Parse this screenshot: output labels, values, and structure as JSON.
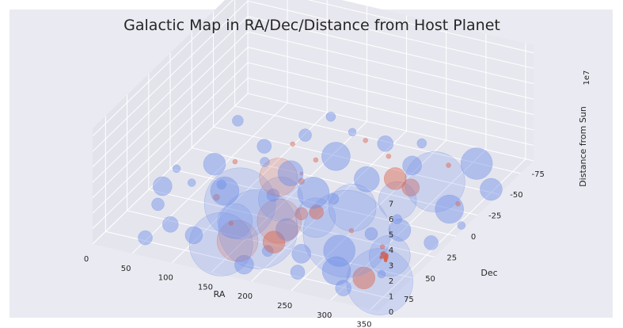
{
  "chart_data": {
    "type": "scatter",
    "title": "Galactic Map in RA/Dec/Distance from Host Planet",
    "xlabel": "RA",
    "ylabel": "Dec",
    "zlabel": "Distance from Sun",
    "z_offset_label": "1e7",
    "xlim": [
      0,
      360
    ],
    "ylim": [
      -90,
      90
    ],
    "zlim": [
      0,
      7.5
    ],
    "x_ticks": [
      "0",
      "50",
      "100",
      "150",
      "200",
      "250",
      "300",
      "350"
    ],
    "y_ticks": [
      "-75",
      "-50",
      "-25",
      "0",
      "25",
      "50",
      "75"
    ],
    "z_ticks": [
      "0",
      "1",
      "2",
      "3",
      "4",
      "5",
      "6",
      "7"
    ],
    "grid": true,
    "colors": {
      "blue": "#6f8fe6",
      "red": "#d9624a"
    },
    "series": [
      {
        "color": "blue",
        "points": [
          [
            12,
            20,
            0.1,
            12
          ],
          [
            28,
            40,
            0.2,
            8
          ],
          [
            45,
            -10,
            0.3,
            14
          ],
          [
            60,
            55,
            0.1,
            10
          ],
          [
            75,
            -40,
            0.2,
            9
          ],
          [
            85,
            15,
            0.4,
            18
          ],
          [
            95,
            60,
            0.1,
            11
          ],
          [
            105,
            -60,
            0.2,
            8
          ],
          [
            115,
            25,
            0.5,
            45
          ],
          [
            125,
            40,
            0.3,
            22
          ],
          [
            130,
            -20,
            0.2,
            16
          ],
          [
            140,
            70,
            0.6,
            40
          ],
          [
            150,
            10,
            0.4,
            28
          ],
          [
            160,
            -45,
            0.3,
            18
          ],
          [
            165,
            50,
            0.8,
            50
          ],
          [
            175,
            -5,
            0.3,
            20
          ],
          [
            185,
            35,
            0.2,
            14
          ],
          [
            195,
            -70,
            0.2,
            10
          ],
          [
            205,
            20,
            0.4,
            25
          ],
          [
            215,
            -30,
            0.3,
            16
          ],
          [
            225,
            55,
            0.2,
            12
          ],
          [
            235,
            5,
            0.6,
            30
          ],
          [
            245,
            -55,
            0.2,
            12
          ],
          [
            255,
            30,
            0.5,
            55
          ],
          [
            262,
            45,
            0.3,
            20
          ],
          [
            270,
            -15,
            0.4,
            24
          ],
          [
            280,
            65,
            0.3,
            18
          ],
          [
            290,
            -40,
            0.5,
            38
          ],
          [
            300,
            10,
            0.2,
            14
          ],
          [
            310,
            -70,
            0.3,
            20
          ],
          [
            320,
            40,
            0.4,
            26
          ],
          [
            330,
            -20,
            0.3,
            18
          ],
          [
            340,
            70,
            0.6,
            42
          ],
          [
            350,
            -50,
            0.2,
            14
          ],
          [
            20,
            -60,
            0.1,
            7
          ],
          [
            50,
            75,
            0.2,
            9
          ],
          [
            70,
            5,
            0.1,
            6
          ],
          [
            110,
            -85,
            0.1,
            6
          ],
          [
            135,
            5,
            0.2,
            8
          ],
          [
            180,
            80,
            0.3,
            12
          ],
          [
            200,
            -5,
            0.2,
            7
          ],
          [
            230,
            -80,
            0.1,
            6
          ],
          [
            275,
            20,
            0.2,
            8
          ],
          [
            305,
            80,
            0.3,
            10
          ],
          [
            345,
            15,
            0.2,
            9
          ],
          [
            8,
            0,
            0.1,
            5
          ],
          [
            38,
            10,
            0.1,
            5
          ],
          [
            92,
            -25,
            0.2,
            6
          ],
          [
            148,
            -75,
            0.1,
            5
          ],
          [
            188,
            60,
            0.2,
            7
          ],
          [
            242,
            75,
            0.3,
            9
          ],
          [
            286,
            0,
            0.2,
            6
          ],
          [
            326,
            55,
            0.1,
            5
          ],
          [
            356,
            -10,
            0.1,
            5
          ]
        ]
      },
      {
        "color": "red",
        "points": [
          [
            150,
            60,
            0.4,
            26
          ],
          [
            170,
            30,
            0.3,
            28
          ],
          [
            185,
            50,
            0.2,
            14
          ],
          [
            120,
            -15,
            0.1,
            24
          ],
          [
            240,
            -40,
            0.1,
            14
          ],
          [
            265,
            -35,
            0.1,
            11
          ],
          [
            195,
            10,
            0.1,
            9
          ],
          [
            320,
            70,
            0.6,
            14
          ],
          [
            225,
            55,
            2.8,
            8
          ],
          [
            225,
            55,
            4.9,
            4
          ],
          [
            225,
            55,
            5.4,
            2
          ],
          [
            80,
            20,
            0.2,
            4
          ],
          [
            100,
            -50,
            0.1,
            3
          ],
          [
            60,
            -20,
            0.1,
            3
          ],
          [
            210,
            -60,
            0.1,
            3
          ],
          [
            280,
            -65,
            0.1,
            3
          ],
          [
            300,
            30,
            0.2,
            3
          ],
          [
            250,
            20,
            0.1,
            3
          ],
          [
            140,
            -40,
            0.1,
            3
          ],
          [
            170,
            -70,
            0.1,
            3
          ],
          [
            120,
            40,
            0.1,
            3
          ],
          [
            330,
            -30,
            0.1,
            3
          ]
        ]
      },
      {
        "color": "red",
        "name": "",
        "cluster": true,
        "points": [
          [
            305,
            35,
            0.1,
            2
          ],
          [
            307,
            37,
            0.1,
            2
          ],
          [
            309,
            36,
            0.1,
            2
          ],
          [
            311,
            38,
            0.1,
            2
          ],
          [
            313,
            39,
            0.1,
            2
          ],
          [
            315,
            40,
            0.1,
            2
          ],
          [
            306,
            34,
            0.1,
            2
          ],
          [
            310,
            35,
            0.1,
            2
          ],
          [
            312,
            36,
            0.1,
            2
          ],
          [
            314,
            38,
            0.1,
            2
          ],
          [
            308,
            39,
            0.1,
            2
          ],
          [
            316,
            41,
            0.1,
            2
          ]
        ]
      }
    ]
  }
}
